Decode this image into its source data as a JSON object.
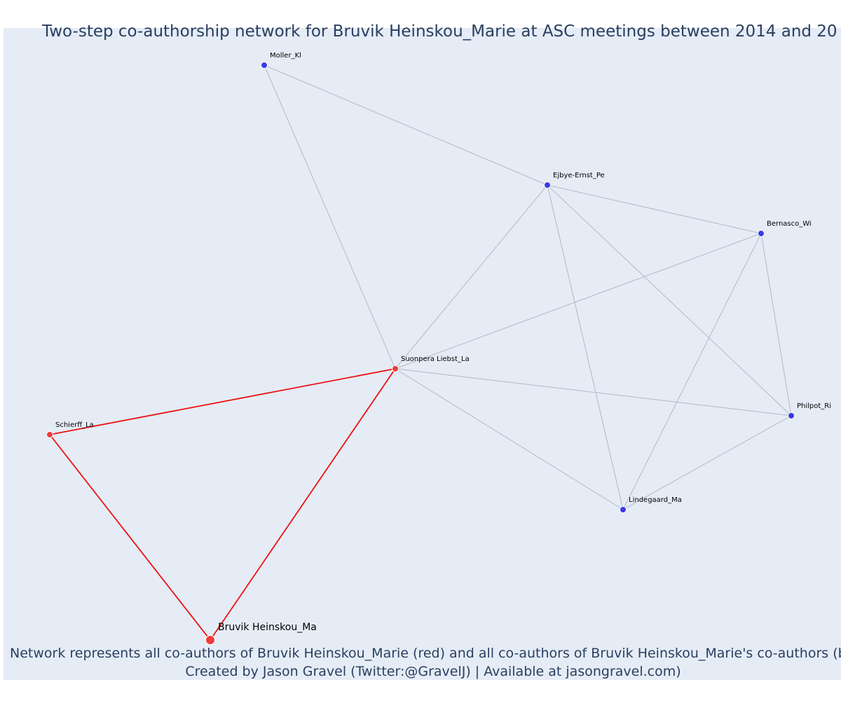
{
  "title": "Two-step co-authorship network for Bruvik Heinskou_Marie at ASC meetings between 2014 and 20",
  "nodes": [
    {
      "label": "Moller_Kl"
    },
    {
      "label": "Ejbye-Ernst_Pe"
    },
    {
      "label": "Bernasco_Wi"
    },
    {
      "label": "Suonpera Liebst_La"
    },
    {
      "label": "Schierff_La"
    },
    {
      "label": "Philpot_Ri"
    },
    {
      "label": "Lindegaard_Ma"
    },
    {
      "label": "Bruvik Heinskou_Ma"
    }
  ],
  "footer": {
    "line1": "Network represents all co-authors of Bruvik Heinskou_Marie (red) and all co-authors of Bruvik Heinskou_Marie's co-authors (blu",
    "line2": "Created by Jason Gravel (Twitter:@GravelJ) | Available at jasongravel.com)"
  }
}
